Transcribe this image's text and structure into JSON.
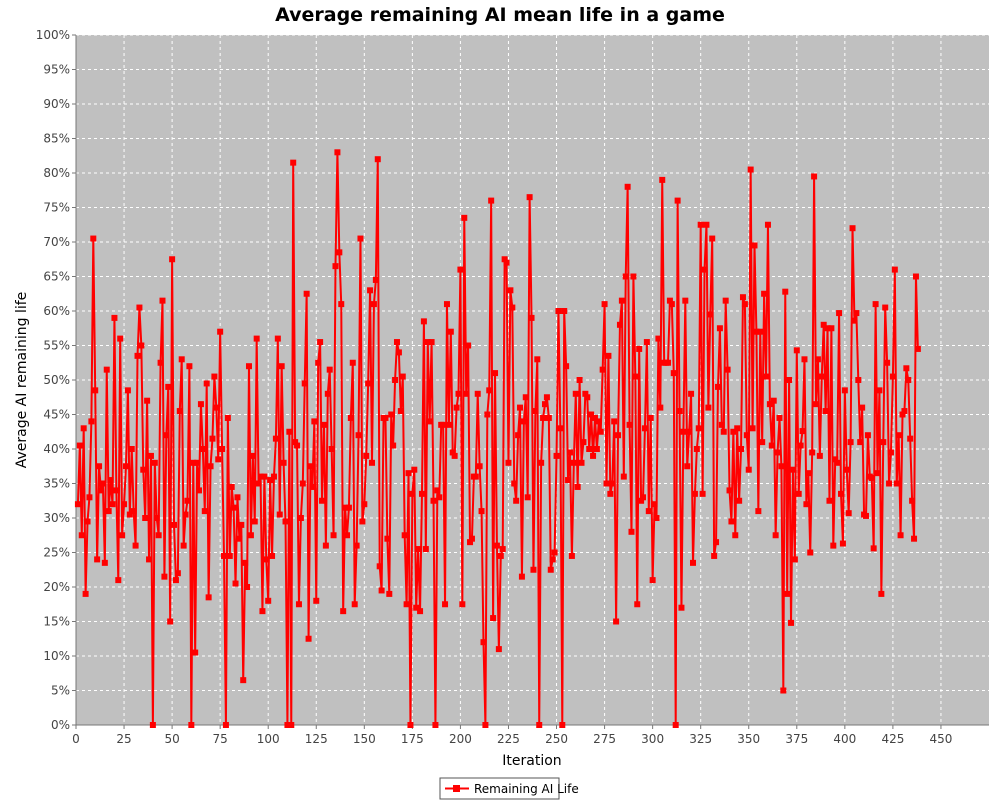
{
  "chart_data": {
    "type": "line",
    "title": "Average remaining AI mean life in a game",
    "xlabel": "Iteration",
    "ylabel": "Average AI remaining life",
    "xlim": [
      0,
      475
    ],
    "ylim": [
      0,
      100
    ],
    "x_ticks": [
      0,
      25,
      50,
      75,
      100,
      125,
      150,
      175,
      200,
      225,
      250,
      275,
      300,
      325,
      350,
      375,
      400,
      425,
      450
    ],
    "y_ticks": [
      0,
      5,
      10,
      15,
      20,
      25,
      30,
      35,
      40,
      45,
      50,
      55,
      60,
      65,
      70,
      75,
      80,
      85,
      90,
      95,
      100
    ],
    "y_tick_suffix": "%",
    "grid": true,
    "legend_position": "bottom-center",
    "colors": {
      "plot_background": "#c0c0c0",
      "series": "#ff0000",
      "grid": "#ffffff"
    },
    "series": [
      {
        "name": "Remaining AI Life",
        "x_start": 1,
        "x_step": 1,
        "values": [
          32,
          40.5,
          27.5,
          43,
          19,
          29.5,
          33,
          44,
          70.5,
          48.5,
          24,
          37.5,
          34,
          35,
          23.5,
          51.5,
          31,
          35.5,
          32,
          59,
          34,
          21,
          56,
          27.5,
          32,
          37.5,
          48.5,
          30.5,
          40,
          31,
          26,
          53.5,
          60.5,
          55,
          37,
          30,
          47,
          24,
          39,
          0,
          38,
          30,
          27.5,
          52.5,
          61.5,
          21.5,
          42,
          49,
          15,
          67.5,
          29,
          21,
          22,
          45.5,
          53,
          26,
          30.5,
          32.5,
          52,
          0,
          38,
          10.5,
          38,
          34,
          46.5,
          40,
          31,
          49.5,
          18.5,
          37.5,
          41.5,
          50.5,
          46,
          38.5,
          57,
          40,
          24.5,
          0,
          44.5,
          24.5,
          34.5,
          31.5,
          20.5,
          33,
          27,
          29,
          6.5,
          23.5,
          20,
          52,
          27.5,
          39,
          29.5,
          56,
          35,
          36,
          16.5,
          36,
          24,
          18,
          35.5,
          24.5,
          36,
          41.5,
          56,
          30.5,
          52,
          38,
          29.5,
          0,
          42.5,
          0,
          81.5,
          41,
          40.5,
          17.5,
          30,
          35,
          49.5,
          62.5,
          12.5,
          37.5,
          34.5,
          44,
          18,
          52.5,
          55.5,
          32.5,
          43.5,
          26,
          48,
          51.5,
          40,
          27.5,
          66.5,
          83,
          68.5,
          61,
          16.5,
          31.5,
          27.5,
          31.5,
          44.5,
          52.5,
          17.5,
          26,
          42,
          70.5,
          29.5,
          32,
          39,
          49.5,
          63,
          38,
          61,
          64.5,
          82,
          23,
          19.5,
          44.5,
          44.5,
          27,
          19,
          45,
          40.5,
          50,
          55.5,
          54,
          45.5,
          50.5,
          27.5,
          17.5,
          36.5,
          0,
          33.5,
          37,
          17,
          25.5,
          16.5,
          33.5,
          58.5,
          25.5,
          55.5,
          44,
          55.5,
          32.5,
          0,
          34,
          33,
          43.5,
          43.5,
          17.5,
          61,
          43.5,
          57,
          39.5,
          39,
          46,
          48,
          66,
          17.5,
          73.5,
          48,
          55,
          26.5,
          27,
          36,
          36,
          48,
          37.5,
          31,
          12,
          0,
          45,
          48.5,
          76,
          15.5,
          51,
          26,
          11,
          24.5,
          25.5,
          67.5,
          67,
          38,
          63,
          60.5,
          35,
          32.5,
          42,
          46,
          21.5,
          44,
          47.5,
          33,
          76.5,
          59,
          22.5,
          45.5,
          53,
          0,
          38,
          44.5,
          46.5,
          47.5,
          44.5,
          22.5,
          24,
          25,
          39,
          60,
          43,
          0,
          60,
          52,
          35.5,
          39.5,
          24.5,
          38,
          48,
          34.5,
          50,
          38,
          41,
          48,
          47.5,
          40,
          45,
          39,
          44.5,
          40,
          44,
          42.5,
          51.5,
          61,
          35,
          53.5,
          33.5,
          35,
          44,
          15,
          42,
          58,
          61.5,
          36,
          65,
          78,
          43.5,
          28,
          65,
          50.5,
          17.5,
          54.5,
          32.5,
          33,
          43,
          55.5,
          31,
          44.5,
          21,
          32,
          30,
          56,
          46,
          79,
          52.5,
          52.5,
          52.5,
          61.5,
          61,
          51,
          0,
          76,
          45.5,
          17,
          42.5,
          61.5,
          37.5,
          42.5,
          48,
          23.5,
          33.5,
          40,
          43,
          72.5,
          33.5,
          66,
          72.5,
          46,
          59.5,
          70.5,
          24.5,
          26.5,
          49,
          57.5,
          43.5,
          42.5,
          61.5,
          51.5,
          34,
          29.5,
          42.5,
          27.5,
          43,
          32.5,
          40,
          62,
          61,
          42,
          37,
          80.5,
          43,
          69.5,
          57,
          31,
          57,
          41,
          62.5,
          50.5,
          72.5,
          46.5,
          40.5,
          47,
          27.5,
          39.5,
          44.5,
          37.5,
          5,
          62.8,
          19,
          50,
          14.8,
          37,
          24,
          54.3,
          33.5,
          40.5,
          42.6,
          53,
          32,
          36.5,
          25,
          39.5,
          79.5,
          46.5,
          53,
          39,
          50.5,
          58,
          45.5,
          57.5,
          32.5,
          57.5,
          26,
          38.5,
          38,
          59.7,
          33.5,
          26.3,
          48.5,
          37,
          30.7,
          41,
          72,
          58.6,
          59.7,
          50,
          41,
          46,
          30.5,
          30.3,
          42,
          36,
          35.8,
          25.6,
          61,
          36.5,
          48.5,
          19,
          41,
          60.5,
          52.5,
          35,
          39.5,
          50.5,
          66,
          35,
          42,
          27.5,
          45,
          45.5,
          51.7,
          50,
          41.5,
          32.5,
          27,
          65,
          54.5
        ]
      }
    ]
  }
}
